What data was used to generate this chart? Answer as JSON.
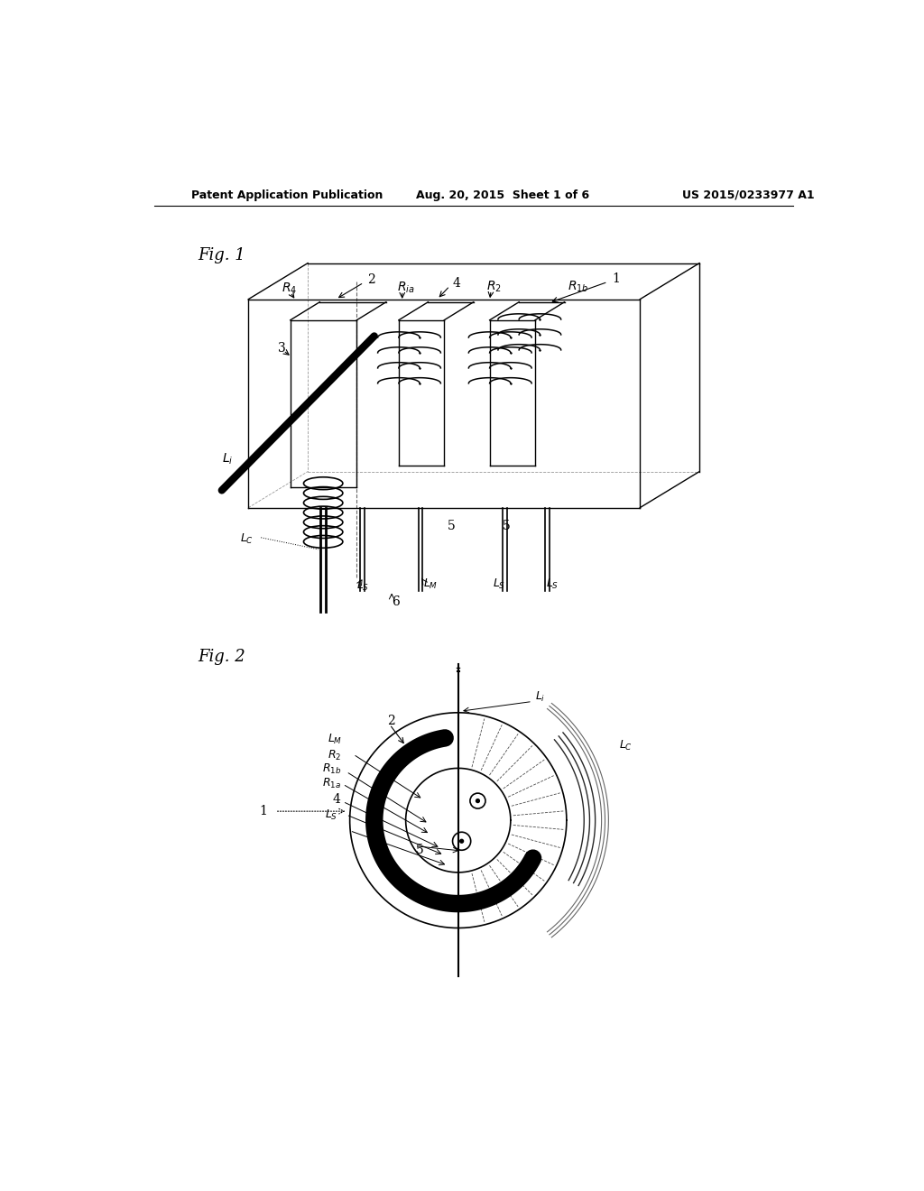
{
  "background_color": "#ffffff",
  "header_left": "Patent Application Publication",
  "header_center": "Aug. 20, 2015  Sheet 1 of 6",
  "header_right": "US 2015/0233977 A1",
  "fig1_label": "Fig. 1",
  "fig2_label": "Fig. 2"
}
